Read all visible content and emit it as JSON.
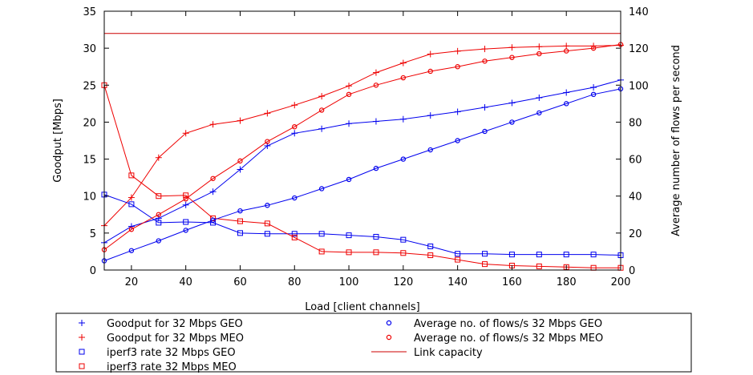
{
  "chart_data": {
    "type": "scatter",
    "xlabel": "Load [client channels]",
    "ylabel": "Goodput [Mbps]",
    "y2label": "Average number of flows per second",
    "xlim": [
      10,
      200
    ],
    "ylim": [
      0,
      35
    ],
    "y2lim": [
      0,
      140
    ],
    "x_ticks": [
      20,
      40,
      60,
      80,
      100,
      120,
      140,
      160,
      180,
      200
    ],
    "y_ticks": [
      0,
      5,
      10,
      15,
      20,
      25,
      30,
      35
    ],
    "y2_ticks": [
      0,
      20,
      40,
      60,
      80,
      100,
      120,
      140
    ],
    "grid": false,
    "legend_position": "bottom",
    "series": [
      {
        "name": "Goodput for 32 Mbps GEO",
        "marker": "plus",
        "color": "#0000ee",
        "axis": "left",
        "x": [
          10,
          20,
          30,
          40,
          50,
          60,
          70,
          80,
          90,
          100,
          110,
          120,
          130,
          140,
          150,
          160,
          170,
          180,
          190,
          200
        ],
        "values": [
          3.7,
          5.9,
          7.0,
          8.8,
          10.6,
          13.6,
          16.8,
          18.5,
          19.1,
          19.8,
          20.1,
          20.4,
          20.9,
          21.4,
          22.0,
          22.6,
          23.3,
          24.0,
          24.7,
          25.7
        ]
      },
      {
        "name": "Goodput for 32 Mbps MEO",
        "marker": "plus",
        "color": "#ee0000",
        "axis": "left",
        "x": [
          10,
          20,
          30,
          40,
          50,
          60,
          70,
          80,
          90,
          100,
          110,
          120,
          130,
          140,
          150,
          160,
          170,
          180,
          190,
          200
        ],
        "values": [
          6.0,
          9.8,
          15.2,
          18.5,
          19.7,
          20.2,
          21.2,
          22.3,
          23.5,
          24.9,
          26.7,
          28.0,
          29.2,
          29.6,
          29.9,
          30.1,
          30.2,
          30.3,
          30.3,
          30.4
        ]
      },
      {
        "name": "iperf3 rate 32 Mbps GEO",
        "marker": "square",
        "color": "#0000ee",
        "axis": "left",
        "x": [
          10,
          20,
          30,
          40,
          50,
          60,
          70,
          80,
          90,
          100,
          110,
          120,
          130,
          140,
          150,
          160,
          170,
          180,
          190,
          200
        ],
        "values": [
          10.2,
          8.9,
          6.4,
          6.5,
          6.4,
          5.0,
          4.9,
          4.9,
          4.9,
          4.7,
          4.5,
          4.1,
          3.2,
          2.2,
          2.2,
          2.1,
          2.1,
          2.1,
          2.1,
          2.0
        ]
      },
      {
        "name": "iperf3 rate 32 Mbps MEO",
        "marker": "square",
        "color": "#ee0000",
        "axis": "left",
        "x": [
          10,
          20,
          30,
          40,
          50,
          60,
          70,
          80,
          90,
          100,
          110,
          120,
          130,
          140,
          150,
          160,
          170,
          180,
          190,
          200
        ],
        "values": [
          25.0,
          12.8,
          10.0,
          10.1,
          7.0,
          6.6,
          6.3,
          4.4,
          2.5,
          2.4,
          2.4,
          2.3,
          2.0,
          1.4,
          0.8,
          0.6,
          0.5,
          0.4,
          0.3,
          0.3
        ]
      },
      {
        "name": "Average no. of flows/s 32 Mbps GEO",
        "marker": "circle",
        "color": "#0000ee",
        "axis": "right",
        "x": [
          10,
          20,
          30,
          40,
          50,
          60,
          70,
          80,
          90,
          100,
          110,
          120,
          130,
          140,
          150,
          160,
          170,
          180,
          190,
          200
        ],
        "values": [
          5,
          10.5,
          15.8,
          21.5,
          27,
          32,
          35,
          39,
          44,
          49,
          55,
          60,
          65,
          70,
          75,
          80,
          85,
          90,
          95,
          98
        ]
      },
      {
        "name": "Average no. of flows/s 32 Mbps MEO",
        "marker": "circle",
        "color": "#ee0000",
        "axis": "right",
        "x": [
          10,
          20,
          30,
          40,
          50,
          60,
          70,
          80,
          90,
          100,
          110,
          120,
          130,
          140,
          150,
          160,
          170,
          180,
          190,
          200
        ],
        "values": [
          11,
          22,
          30,
          38.5,
          49.5,
          59,
          69.5,
          77.5,
          86.5,
          95,
          100,
          104,
          107.5,
          110,
          113,
          115,
          117,
          118.5,
          120,
          122
        ]
      },
      {
        "name": "Link capacity",
        "marker": "line",
        "color": "#cc0000",
        "axis": "left",
        "x": [
          10,
          200
        ],
        "values": [
          32,
          32
        ]
      }
    ]
  }
}
